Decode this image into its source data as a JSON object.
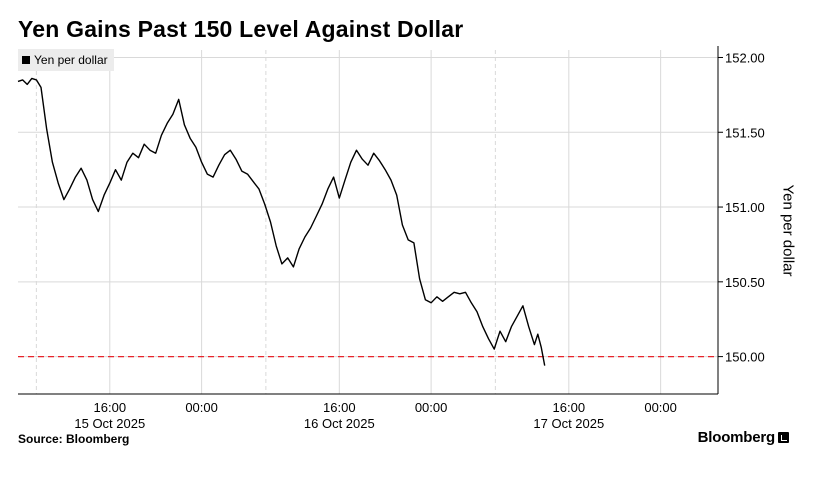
{
  "title": "Yen Gains Past 150 Level Against Dollar",
  "source": "Source: Bloomberg",
  "brand": "Bloomberg",
  "colors": {
    "line": "#000000",
    "reference": "#e8242a",
    "grid": "#d9d9d9"
  },
  "chart_data": {
    "type": "line",
    "series": [
      {
        "name": "Yen per dollar",
        "points": [
          [
            0.0,
            151.84
          ],
          [
            0.4,
            151.85
          ],
          [
            0.8,
            151.82
          ],
          [
            1.2,
            151.86
          ],
          [
            1.6,
            151.85
          ],
          [
            2.0,
            151.8
          ],
          [
            2.5,
            151.52
          ],
          [
            3.0,
            151.3
          ],
          [
            3.5,
            151.16
          ],
          [
            4.0,
            151.05
          ],
          [
            4.5,
            151.12
          ],
          [
            5.0,
            151.2
          ],
          [
            5.5,
            151.26
          ],
          [
            6.0,
            151.18
          ],
          [
            6.5,
            151.05
          ],
          [
            7.0,
            150.97
          ],
          [
            7.5,
            151.08
          ],
          [
            8.0,
            151.16
          ],
          [
            8.5,
            151.25
          ],
          [
            9.0,
            151.18
          ],
          [
            9.5,
            151.3
          ],
          [
            10.0,
            151.36
          ],
          [
            10.5,
            151.33
          ],
          [
            11.0,
            151.42
          ],
          [
            11.5,
            151.38
          ],
          [
            12.0,
            151.36
          ],
          [
            12.5,
            151.48
          ],
          [
            13.0,
            151.56
          ],
          [
            13.5,
            151.62
          ],
          [
            14.0,
            151.72
          ],
          [
            14.5,
            151.55
          ],
          [
            15.0,
            151.46
          ],
          [
            15.5,
            151.4
          ],
          [
            16.0,
            151.3
          ],
          [
            16.5,
            151.22
          ],
          [
            17.0,
            151.2
          ],
          [
            17.5,
            151.28
          ],
          [
            18.0,
            151.35
          ],
          [
            18.5,
            151.38
          ],
          [
            19.0,
            151.32
          ],
          [
            19.5,
            151.24
          ],
          [
            20.0,
            151.22
          ],
          [
            20.5,
            151.17
          ],
          [
            21.0,
            151.12
          ],
          [
            21.5,
            151.02
          ],
          [
            22.0,
            150.9
          ],
          [
            22.5,
            150.74
          ],
          [
            23.0,
            150.62
          ],
          [
            23.5,
            150.66
          ],
          [
            24.0,
            150.6
          ],
          [
            24.5,
            150.72
          ],
          [
            25.0,
            150.8
          ],
          [
            25.5,
            150.86
          ],
          [
            26.0,
            150.94
          ],
          [
            26.5,
            151.02
          ],
          [
            27.0,
            151.12
          ],
          [
            27.5,
            151.2
          ],
          [
            28.0,
            151.06
          ],
          [
            28.5,
            151.18
          ],
          [
            29.0,
            151.3
          ],
          [
            29.5,
            151.38
          ],
          [
            30.0,
            151.32
          ],
          [
            30.5,
            151.28
          ],
          [
            31.0,
            151.36
          ],
          [
            31.5,
            151.31
          ],
          [
            32.0,
            151.25
          ],
          [
            32.5,
            151.18
          ],
          [
            33.0,
            151.08
          ],
          [
            33.5,
            150.88
          ],
          [
            34.0,
            150.78
          ],
          [
            34.5,
            150.76
          ],
          [
            35.0,
            150.52
          ],
          [
            35.5,
            150.38
          ],
          [
            36.0,
            150.36
          ],
          [
            36.5,
            150.4
          ],
          [
            37.0,
            150.37
          ],
          [
            37.5,
            150.4
          ],
          [
            38.0,
            150.43
          ],
          [
            38.5,
            150.42
          ],
          [
            39.0,
            150.43
          ],
          [
            39.5,
            150.36
          ],
          [
            40.0,
            150.3
          ],
          [
            40.5,
            150.2
          ],
          [
            41.0,
            150.12
          ],
          [
            41.5,
            150.05
          ],
          [
            42.0,
            150.17
          ],
          [
            42.5,
            150.1
          ],
          [
            43.0,
            150.2
          ],
          [
            43.5,
            150.27
          ],
          [
            44.0,
            150.34
          ],
          [
            44.5,
            150.2
          ],
          [
            45.0,
            150.08
          ],
          [
            45.3,
            150.15
          ],
          [
            45.6,
            150.06
          ],
          [
            45.9,
            149.94
          ]
        ]
      }
    ],
    "reference_line": {
      "y": 150.0,
      "style": "dashed"
    },
    "x_ticks": [
      {
        "x": 8,
        "time": "16:00",
        "date": "15 Oct 2025"
      },
      {
        "x": 16,
        "time": "00:00",
        "date": ""
      },
      {
        "x": 28,
        "time": "16:00",
        "date": "16 Oct 2025"
      },
      {
        "x": 36,
        "time": "00:00",
        "date": ""
      },
      {
        "x": 48,
        "time": "16:00",
        "date": "17 Oct 2025"
      },
      {
        "x": 56,
        "time": "00:00",
        "date": ""
      }
    ],
    "day_boundaries": [
      1.6,
      21.6,
      41.6
    ],
    "xlim": [
      0,
      61
    ],
    "ylim": [
      149.75,
      152.05
    ],
    "y_ticks": [
      {
        "value": 150.0,
        "label": "150.00"
      },
      {
        "value": 150.5,
        "label": "150.50"
      },
      {
        "value": 151.0,
        "label": "151.00"
      },
      {
        "value": 151.5,
        "label": "151.50"
      },
      {
        "value": 152.0,
        "label": "152.00"
      }
    ],
    "ylabel": "Yen per dollar",
    "legend": [
      "Yen per dollar"
    ],
    "legend_position": "top-left",
    "grid": true
  }
}
